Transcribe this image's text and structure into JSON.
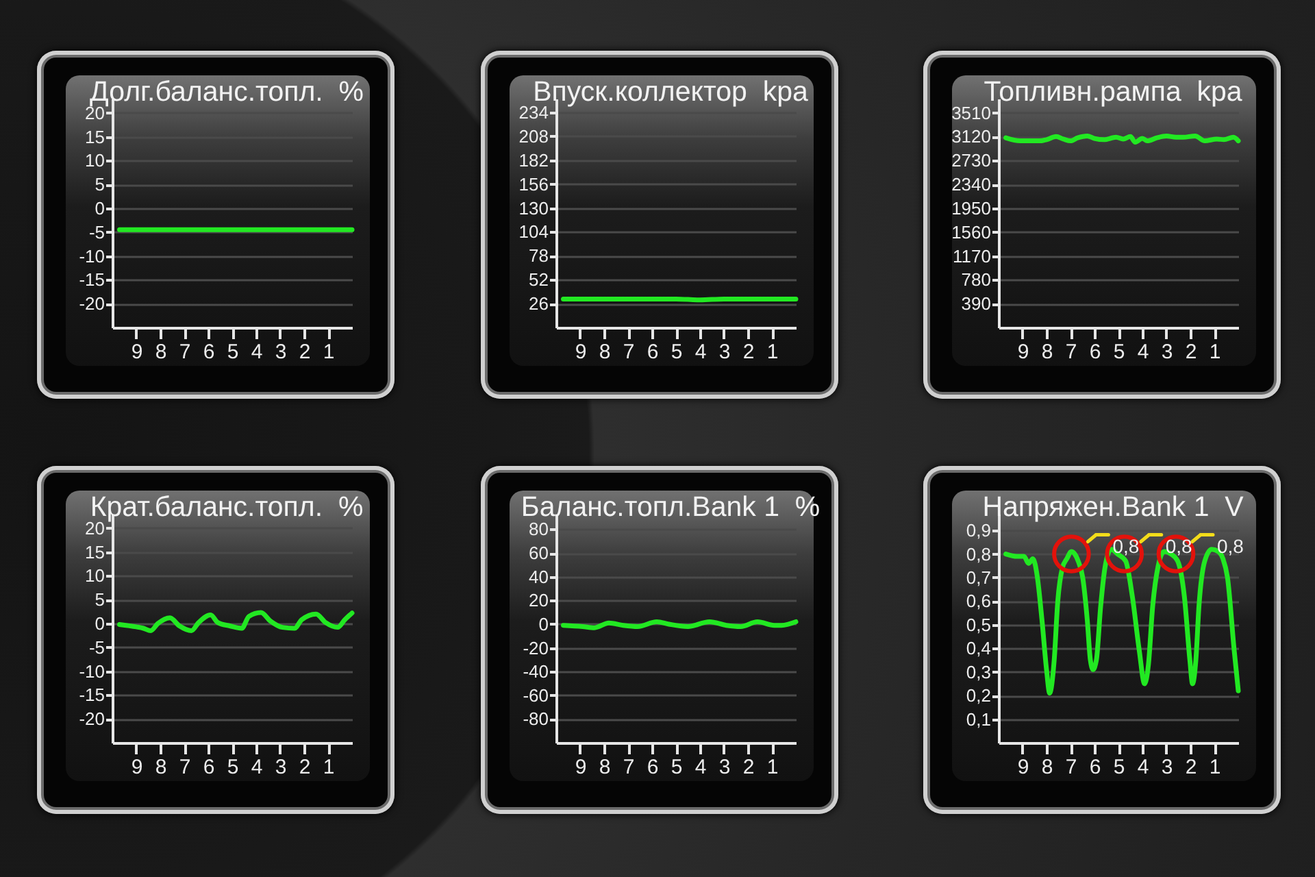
{
  "chart_data": [
    {
      "type": "line",
      "title": "Долг.баланс.топл.  %",
      "x": [
        9.7,
        5,
        0
      ],
      "values": [
        -4.5,
        -4.5,
        -4.5
      ],
      "color": "#22e822",
      "xlim": [
        10,
        0
      ],
      "xticks": [
        9,
        8,
        7,
        6,
        5,
        4,
        3,
        2,
        1
      ],
      "ylim": [
        -25,
        23
      ],
      "yticks": [
        -20,
        -15,
        -10,
        -5,
        0,
        5,
        10,
        15,
        20
      ],
      "grid": "y"
    },
    {
      "type": "line",
      "title": "Впуск.коллектор  kpa",
      "x": [
        9.7,
        7,
        5,
        4,
        3,
        0
      ],
      "values": [
        31,
        31,
        31,
        30,
        31,
        31
      ],
      "color": "#22e822",
      "xlim": [
        10,
        0
      ],
      "xticks": [
        9,
        8,
        7,
        6,
        5,
        4,
        3,
        2,
        1
      ],
      "ylim": [
        0,
        249
      ],
      "yticks": [
        26,
        52,
        78,
        104,
        130,
        156,
        182,
        208,
        234
      ],
      "grid": "y"
    },
    {
      "type": "line",
      "title": "Топливн.рампа  kpa",
      "x": [
        9.7,
        9.1,
        8.3,
        8,
        7.6,
        7.3,
        7,
        6.7,
        6.3,
        6,
        5.6,
        5.1,
        4.8,
        4.5,
        4.3,
        4,
        3.8,
        3.4,
        3,
        2.6,
        2.3,
        1.8,
        1.4,
        0.9,
        0.6,
        0.2,
        0
      ],
      "values": [
        3100,
        3050,
        3050,
        3070,
        3120,
        3080,
        3050,
        3100,
        3130,
        3090,
        3070,
        3110,
        3080,
        3120,
        3030,
        3090,
        3050,
        3100,
        3130,
        3110,
        3110,
        3130,
        3050,
        3080,
        3070,
        3110,
        3050
      ],
      "color": "#22e822",
      "xlim": [
        10,
        0
      ],
      "xticks": [
        9,
        8,
        7,
        6,
        5,
        4,
        3,
        2,
        1
      ],
      "ylim": [
        0,
        3740
      ],
      "yticks": [
        390,
        780,
        1170,
        1560,
        1950,
        2340,
        2730,
        3120,
        3510
      ],
      "grid": "y"
    },
    {
      "type": "line",
      "title": "Крат.баланс.топл.  %",
      "x": [
        9.7,
        9,
        8.7,
        8.4,
        8.1,
        7.6,
        7.2,
        6.7,
        6.4,
        5.9,
        5.6,
        5.1,
        4.6,
        4.3,
        3.8,
        3.4,
        2.9,
        2.4,
        2.1,
        1.5,
        1.1,
        0.6,
        0.3,
        0
      ],
      "values": [
        -0.2,
        -0.7,
        -1,
        -1.5,
        0,
        1.2,
        -0.5,
        -1.5,
        0.2,
        1.8,
        0.2,
        -0.5,
        -1,
        1.5,
        2.3,
        0.5,
        -0.8,
        -1,
        0.8,
        2,
        0.2,
        -0.8,
        0.8,
        2.2
      ],
      "color": "#22e822",
      "xlim": [
        10,
        0
      ],
      "xticks": [
        9,
        8,
        7,
        6,
        5,
        4,
        3,
        2,
        1
      ],
      "ylim": [
        -25,
        23
      ],
      "yticks": [
        -20,
        -15,
        -10,
        -5,
        0,
        5,
        10,
        15,
        20
      ],
      "grid": "y"
    },
    {
      "type": "line",
      "title": "Баланс.топл.Bank 1  %",
      "x": [
        9.7,
        8.9,
        8.4,
        7.8,
        7.2,
        6.6,
        5.8,
        5.3,
        4.5,
        3.6,
        2.9,
        2.3,
        1.6,
        0.9,
        0.6,
        0
      ],
      "values": [
        -1,
        -2,
        -3,
        1,
        -1,
        -2,
        2,
        0,
        -2,
        2,
        -1,
        -2,
        2,
        -1,
        -1,
        2
      ],
      "color": "#22e822",
      "xlim": [
        10,
        0
      ],
      "xticks": [
        9,
        8,
        7,
        6,
        5,
        4,
        3,
        2,
        1
      ],
      "ylim": [
        -100,
        93
      ],
      "yticks": [
        -80,
        -60,
        -40,
        -20,
        0,
        20,
        40,
        60,
        80
      ],
      "grid": "y"
    },
    {
      "type": "line",
      "title": "Напряжен.Bank 1  V",
      "x": [
        9.7,
        9.23,
        8.94,
        8.75,
        8.57,
        8.38,
        8.19,
        8,
        7.87,
        7.68,
        7.53,
        7.34,
        7.15,
        6.96,
        6.68,
        6.49,
        6.3,
        6.17,
        6.06,
        5.92,
        5.74,
        5.55,
        5.3,
        5.04,
        4.7,
        4.42,
        4.13,
        3.91,
        3.75,
        3.57,
        3.34,
        3.09,
        2.81,
        2.53,
        2.25,
        2.02,
        1.91,
        1.77,
        1.64,
        1.4,
        1.11,
        0.83,
        0.64,
        0.45,
        0.17,
        0
      ],
      "values": [
        0.8,
        0.79,
        0.79,
        0.76,
        0.78,
        0.7,
        0.52,
        0.31,
        0.21,
        0.35,
        0.6,
        0.74,
        0.78,
        0.81,
        0.77,
        0.7,
        0.52,
        0.35,
        0.31,
        0.35,
        0.58,
        0.75,
        0.82,
        0.8,
        0.77,
        0.62,
        0.39,
        0.25,
        0.33,
        0.58,
        0.75,
        0.81,
        0.8,
        0.77,
        0.62,
        0.35,
        0.25,
        0.35,
        0.58,
        0.77,
        0.82,
        0.81,
        0.78,
        0.7,
        0.39,
        0.22
      ],
      "color": "#22e822",
      "xlim": [
        10,
        0
      ],
      "xticks": [
        9,
        8,
        7,
        6,
        5,
        4,
        3,
        2,
        1
      ],
      "ylim": [
        0,
        0.97
      ],
      "yticks": [
        {
          "value": 0.1,
          "label": "0,1"
        },
        {
          "value": 0.2,
          "label": "0,2"
        },
        {
          "value": 0.3,
          "label": "0,3"
        },
        {
          "value": 0.4,
          "label": "0,4"
        },
        {
          "value": 0.5,
          "label": "0,5"
        },
        {
          "value": 0.6,
          "label": "0,6"
        },
        {
          "value": 0.7,
          "label": "0,7"
        },
        {
          "value": 0.8,
          "label": "0,8"
        },
        {
          "value": 0.9,
          "label": "0,9"
        }
      ],
      "grid": "y",
      "annotations": [
        {
          "text": "0,8",
          "x": 6.96,
          "y": 0.8
        },
        {
          "text": "0,8",
          "x": 4.75,
          "y": 0.8
        },
        {
          "text": "0,8",
          "x": 2.6,
          "y": 0.8
        }
      ]
    }
  ]
}
